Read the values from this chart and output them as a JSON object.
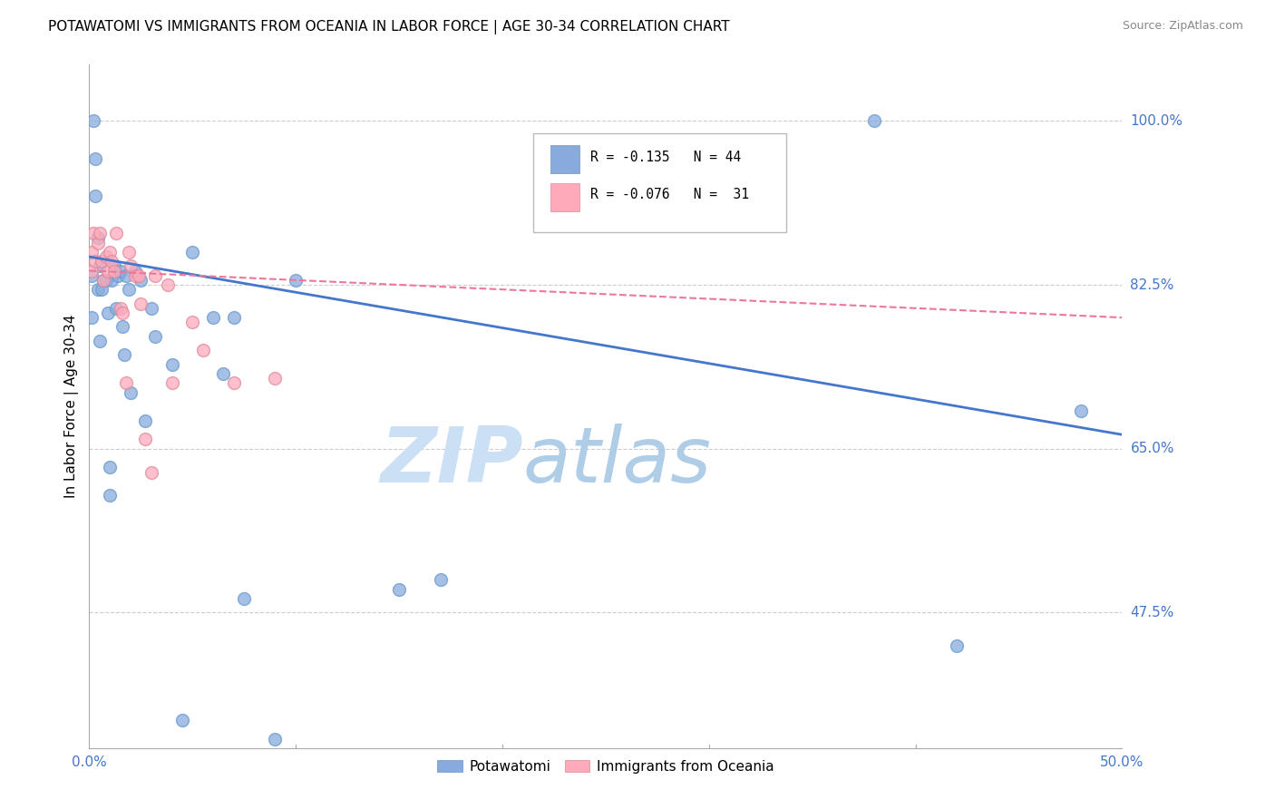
{
  "title": "POTAWATOMI VS IMMIGRANTS FROM OCEANIA IN LABOR FORCE | AGE 30-34 CORRELATION CHART",
  "source": "Source: ZipAtlas.com",
  "ylabel": "In Labor Force | Age 30-34",
  "xlim": [
    0.0,
    0.5
  ],
  "ylim": [
    0.33,
    1.06
  ],
  "ytick_values": [
    1.0,
    0.825,
    0.65,
    0.475
  ],
  "ytick_labels": [
    "100.0%",
    "82.5%",
    "65.0%",
    "47.5%"
  ],
  "blue_color": "#88AADD",
  "pink_color": "#FFAABB",
  "line_blue": "#4477CC",
  "line_pink": "#EE7799",
  "blue_R": "-0.135",
  "blue_N": "44",
  "pink_R": "-0.076",
  "pink_N": "31",
  "watermark_zip": "ZIP",
  "watermark_atlas": "atlas",
  "background_color": "#ffffff",
  "grid_color": "#cccccc",
  "axis_color": "#4477CC",
  "blue_x": [
    0.001,
    0.001,
    0.002,
    0.003,
    0.003,
    0.004,
    0.004,
    0.005,
    0.005,
    0.006,
    0.007,
    0.008,
    0.009,
    0.01,
    0.01,
    0.011,
    0.012,
    0.013,
    0.014,
    0.015,
    0.016,
    0.017,
    0.018,
    0.019,
    0.02,
    0.022,
    0.025,
    0.027,
    0.03,
    0.032,
    0.04,
    0.045,
    0.05,
    0.06,
    0.065,
    0.07,
    0.075,
    0.09,
    0.1,
    0.15,
    0.17,
    0.38,
    0.42,
    0.48
  ],
  "blue_y": [
    0.835,
    0.79,
    1.0,
    0.96,
    0.92,
    0.875,
    0.82,
    0.845,
    0.765,
    0.82,
    0.83,
    0.83,
    0.795,
    0.63,
    0.6,
    0.83,
    0.845,
    0.8,
    0.835,
    0.84,
    0.78,
    0.75,
    0.835,
    0.82,
    0.71,
    0.84,
    0.83,
    0.68,
    0.8,
    0.77,
    0.74,
    0.36,
    0.86,
    0.79,
    0.73,
    0.79,
    0.49,
    0.34,
    0.83,
    0.5,
    0.51,
    1.0,
    0.44,
    0.69
  ],
  "pink_x": [
    0.001,
    0.001,
    0.002,
    0.003,
    0.004,
    0.005,
    0.006,
    0.007,
    0.008,
    0.009,
    0.01,
    0.011,
    0.012,
    0.013,
    0.015,
    0.016,
    0.018,
    0.019,
    0.02,
    0.022,
    0.024,
    0.025,
    0.027,
    0.03,
    0.032,
    0.038,
    0.04,
    0.05,
    0.055,
    0.07,
    0.09
  ],
  "pink_y": [
    0.86,
    0.84,
    0.88,
    0.85,
    0.87,
    0.88,
    0.85,
    0.83,
    0.855,
    0.84,
    0.86,
    0.85,
    0.84,
    0.88,
    0.8,
    0.795,
    0.72,
    0.86,
    0.845,
    0.835,
    0.835,
    0.805,
    0.66,
    0.625,
    0.835,
    0.825,
    0.72,
    0.785,
    0.755,
    0.72,
    0.725
  ],
  "blue_intercept": 0.855,
  "blue_slope": -0.38,
  "pink_intercept": 0.84,
  "pink_slope": -0.1
}
